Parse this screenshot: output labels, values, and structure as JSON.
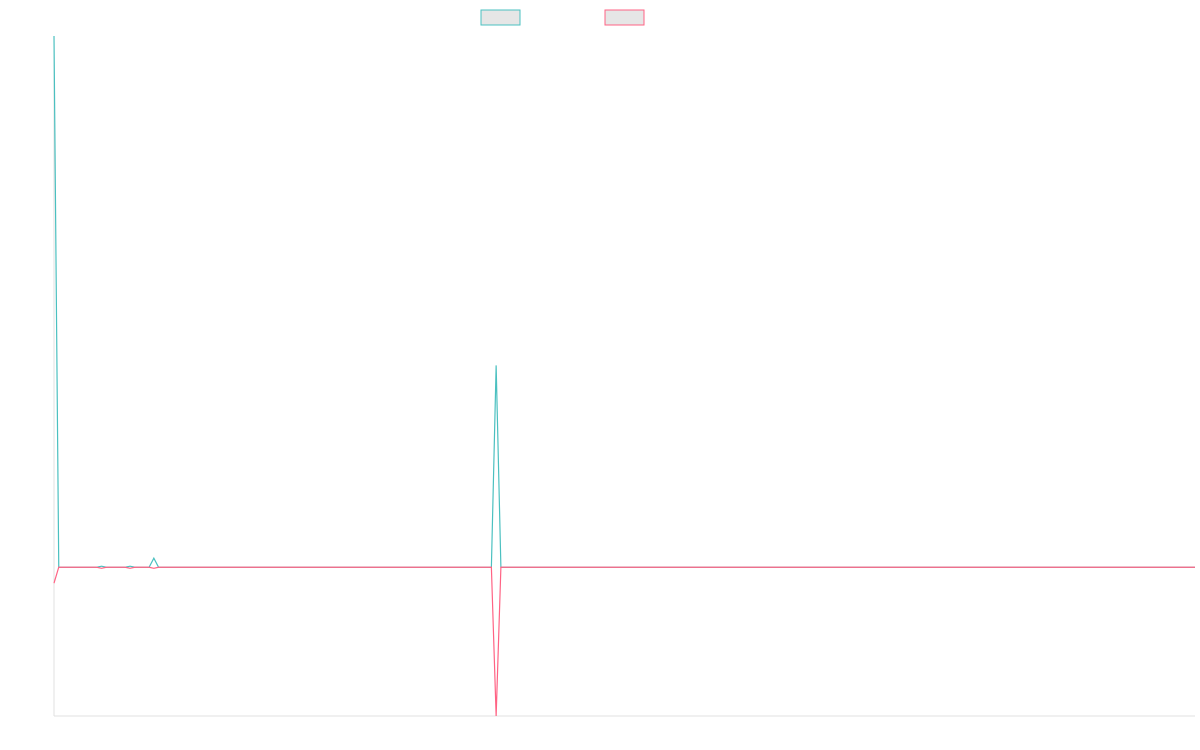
{
  "chart_data": {
    "type": "line",
    "x": [
      0,
      1,
      9,
      10,
      11,
      15,
      16,
      17,
      20,
      21,
      22,
      92,
      93,
      94,
      240
    ],
    "series": [
      {
        "color": "#4bc0c0",
        "values": [
          100,
          0,
          0,
          0.2,
          0,
          0,
          0.2,
          0,
          0,
          1.7,
          0,
          0,
          38,
          0,
          0
        ]
      },
      {
        "color": "#ff6384",
        "values": [
          -3,
          0,
          0,
          -0.2,
          0,
          0,
          -0.2,
          0,
          0,
          -0.2,
          0,
          0,
          -28,
          0,
          0
        ]
      }
    ],
    "xlim": [
      0,
      240
    ],
    "ylim": [
      -28,
      100
    ],
    "legend": "top"
  }
}
